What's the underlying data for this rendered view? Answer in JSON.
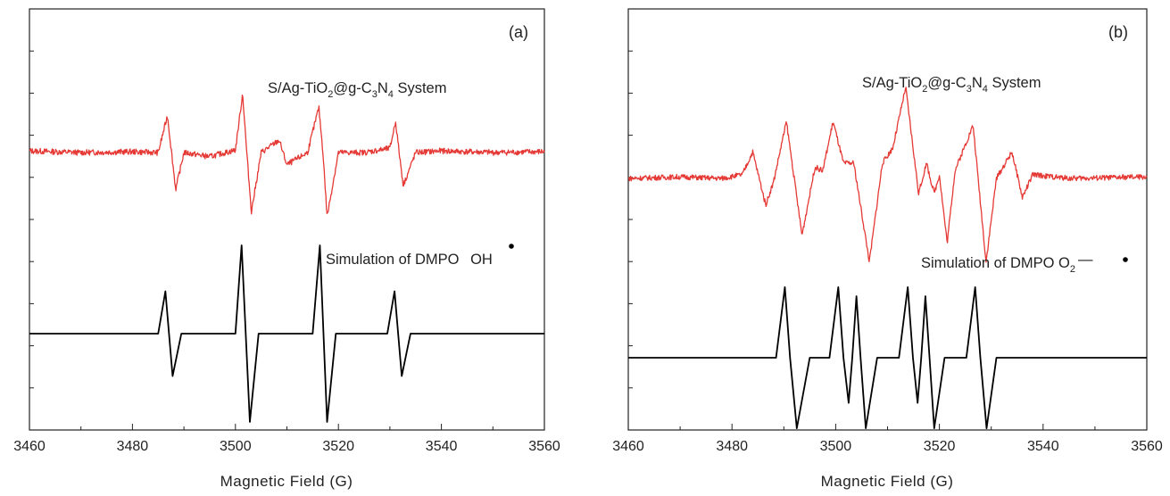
{
  "chart_data": [
    {
      "type": "line",
      "panel_label": "(a)",
      "xlabel": "Magnetic Field (G)",
      "xlim": [
        3460,
        3560
      ],
      "xticks": [
        "3460",
        "3480",
        "3500",
        "3520",
        "3540",
        "3560"
      ],
      "y_tick_labels": false,
      "annotations": [
        {
          "text_main": "S/Ag-TiO",
          "sub1": "2",
          "text_mid": "@g-C",
          "sub2": "3",
          "text_mid2": "N",
          "sub3": "4",
          "text_end": " System",
          "applies_to": "experimental"
        },
        {
          "text_main": "Simulation of DMPO ",
          "radical": "OH",
          "applies_to": "simulation"
        }
      ],
      "series": [
        {
          "role": "experimental",
          "color": "#e53935",
          "x": [
            3460,
            3470,
            3480,
            3485,
            3486.8,
            3487.6,
            3488.4,
            3490,
            3495,
            3500,
            3501.4,
            3502.2,
            3503.1,
            3505,
            3508.5,
            3510,
            3514,
            3516.2,
            3517,
            3517.8,
            3520,
            3525,
            3530,
            3531.1,
            3531.8,
            3532.6,
            3535,
            3540,
            3550,
            3560
          ],
          "y": [
            0.02,
            0.0,
            0.01,
            0.0,
            0.45,
            0.0,
            -0.45,
            0.0,
            -0.05,
            0.03,
            0.72,
            0.0,
            -0.72,
            0.0,
            0.15,
            -0.15,
            0.0,
            0.55,
            0.0,
            -0.78,
            0.0,
            0.0,
            0.05,
            0.38,
            0.0,
            -0.4,
            0.0,
            0.02,
            0.0,
            0.01
          ]
        },
        {
          "role": "simulation",
          "color": "#000000",
          "x": [
            3460,
            3485,
            3486.4,
            3487.1,
            3487.8,
            3489.5,
            3500,
            3501.2,
            3502,
            3502.8,
            3504.5,
            3515,
            3516.4,
            3517.1,
            3517.8,
            3519.5,
            3529.5,
            3530.9,
            3531.6,
            3532.3,
            3534,
            3560
          ],
          "y": [
            0,
            0,
            0.48,
            0,
            -0.48,
            0,
            0,
            1.0,
            0,
            -1.0,
            0,
            0,
            1.0,
            0,
            -1.0,
            0,
            0,
            0.48,
            0,
            -0.48,
            0,
            0
          ]
        }
      ]
    },
    {
      "type": "line",
      "panel_label": "(b)",
      "xlabel": "Magnetic Field (G)",
      "xlim": [
        3460,
        3560
      ],
      "xticks": [
        "3460",
        "3480",
        "3500",
        "3520",
        "3540",
        "3560"
      ],
      "y_tick_labels": false,
      "annotations": [
        {
          "text_main": "S/Ag-TiO",
          "sub1": "2",
          "text_mid": "@g-C",
          "sub2": "3",
          "text_mid2": "N",
          "sub3": "4",
          "text_end": " System",
          "applies_to": "experimental"
        },
        {
          "text_main": "Simulation of DMPO O",
          "sub1": "2",
          "radical": "—",
          "applies_to": "simulation"
        }
      ],
      "series": [
        {
          "role": "experimental",
          "color": "#e53935",
          "x": [
            3460,
            3470,
            3478,
            3482,
            3484,
            3486.5,
            3488,
            3490.5,
            3493.5,
            3496,
            3497.5,
            3499.5,
            3501.5,
            3503.5,
            3506.5,
            3509,
            3511,
            3513.5,
            3516,
            3517.5,
            3519,
            3520,
            3521.5,
            3523,
            3526.5,
            3529,
            3531,
            3534,
            3536,
            3538,
            3545,
            3560
          ],
          "y": [
            0.0,
            0.02,
            0.0,
            0.05,
            0.35,
            -0.35,
            -0.05,
            0.75,
            -0.75,
            0.15,
            0.1,
            0.75,
            0.2,
            0.2,
            -1.1,
            0.2,
            0.4,
            1.2,
            -0.2,
            0.2,
            -0.2,
            0.05,
            -0.85,
            0.1,
            0.7,
            -1.1,
            0.0,
            0.35,
            -0.25,
            0.05,
            0.0,
            0.02
          ]
        },
        {
          "role": "simulation",
          "color": "#000000",
          "x": [
            3460,
            3488.5,
            3490.2,
            3491.2,
            3492.5,
            3495,
            3498.8,
            3500.5,
            3501.5,
            3502.5,
            3503.2,
            3504,
            3504.8,
            3505.8,
            3508,
            3512.2,
            3513.9,
            3514.9,
            3515.8,
            3516.5,
            3517.3,
            3518.1,
            3519,
            3521,
            3525.2,
            3526.9,
            3527.9,
            3529.1,
            3531,
            3560
          ],
          "y": [
            0,
            0,
            0.86,
            0,
            -0.86,
            0,
            0,
            0.86,
            0,
            -0.55,
            0.0,
            0.75,
            0,
            -0.86,
            0,
            0,
            0.86,
            0,
            -0.55,
            0.0,
            0.75,
            0,
            -0.86,
            0,
            0,
            0.86,
            0,
            -0.86,
            0,
            0
          ]
        }
      ]
    }
  ]
}
